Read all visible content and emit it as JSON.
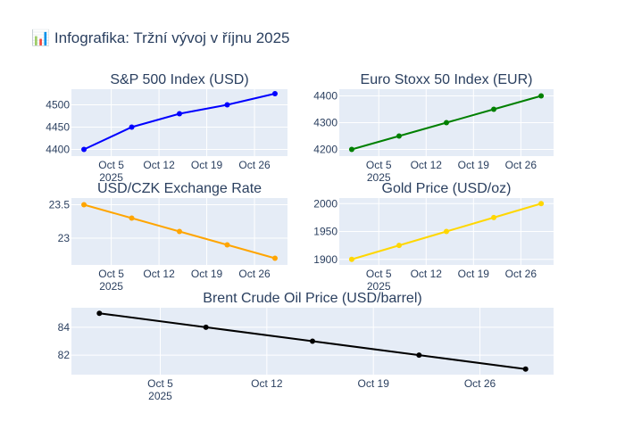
{
  "title": "📊 Infografika: Tržní vývoj v říjnu 2025",
  "colors": {
    "plot_bg": "#e5ecf6",
    "grid": "#ffffff",
    "text": "#2a3f5f"
  },
  "chart_data": [
    {
      "type": "line",
      "title": "S&P 500 Index (USD)",
      "x": [
        "2025-10-01",
        "2025-10-08",
        "2025-10-15",
        "2025-10-22",
        "2025-10-29"
      ],
      "values": [
        4400,
        4450,
        4480,
        4500,
        4525
      ],
      "ylim": [
        4385,
        4535
      ],
      "yticks": [
        4400,
        4450,
        4500
      ],
      "xtick_labels": [
        "Oct 5",
        "Oct 12",
        "Oct 19",
        "Oct 26"
      ],
      "xtick_year": "2025",
      "color": "#0000ff"
    },
    {
      "type": "line",
      "title": "Euro Stoxx 50 Index (EUR)",
      "x": [
        "2025-10-01",
        "2025-10-08",
        "2025-10-15",
        "2025-10-22",
        "2025-10-29"
      ],
      "values": [
        4200,
        4250,
        4300,
        4350,
        4400
      ],
      "ylim": [
        4175,
        4425
      ],
      "yticks": [
        4200,
        4300,
        4400
      ],
      "xtick_labels": [
        "Oct 5",
        "Oct 12",
        "Oct 19",
        "Oct 26"
      ],
      "xtick_year": "2025",
      "color": "#008000"
    },
    {
      "type": "line",
      "title": "USD/CZK Exchange Rate",
      "x": [
        "2025-10-01",
        "2025-10-08",
        "2025-10-15",
        "2025-10-22",
        "2025-10-29"
      ],
      "values": [
        23.5,
        23.3,
        23.1,
        22.9,
        22.7
      ],
      "ylim": [
        22.6,
        23.6
      ],
      "yticks": [
        23,
        23.5
      ],
      "xtick_labels": [
        "Oct 5",
        "Oct 12",
        "Oct 19",
        "Oct 26"
      ],
      "xtick_year": "2025",
      "color": "#ffa500"
    },
    {
      "type": "line",
      "title": "Gold Price (USD/oz)",
      "x": [
        "2025-10-01",
        "2025-10-08",
        "2025-10-15",
        "2025-10-22",
        "2025-10-29"
      ],
      "values": [
        1900,
        1925,
        1950,
        1975,
        2000
      ],
      "ylim": [
        1890,
        2010
      ],
      "yticks": [
        1900,
        1950,
        2000
      ],
      "xtick_labels": [
        "Oct 5",
        "Oct 12",
        "Oct 19",
        "Oct 26"
      ],
      "xtick_year": "2025",
      "color": "#ffd700"
    },
    {
      "type": "line",
      "title": "Brent Crude Oil Price (USD/barrel)",
      "x": [
        "2025-10-01",
        "2025-10-08",
        "2025-10-15",
        "2025-10-22",
        "2025-10-29"
      ],
      "values": [
        85,
        84,
        83,
        82,
        81
      ],
      "ylim": [
        80.6,
        85.4
      ],
      "yticks": [
        82,
        84
      ],
      "xtick_labels": [
        "Oct 5",
        "Oct 12",
        "Oct 19",
        "Oct 26"
      ],
      "xtick_year": "2025",
      "color": "#000000"
    }
  ]
}
